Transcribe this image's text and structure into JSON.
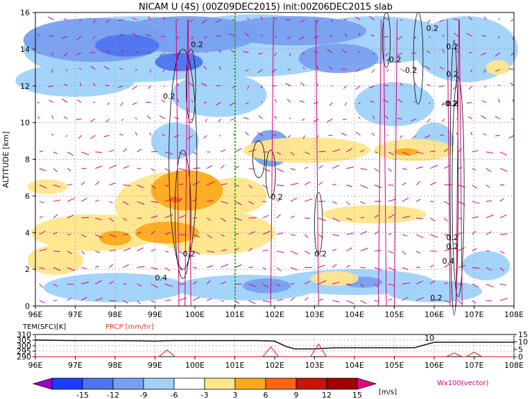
{
  "chart_data": [
    {
      "type": "heatmap",
      "title": "NICAM U (4S) (00Z09DEC2015) init:00Z06DEC2015 slab",
      "ylabel": "ALTITUDE [km]",
      "x_ticks": [
        "96E",
        "97E",
        "98E",
        "99E",
        "100E",
        "101E",
        "102E",
        "103E",
        "104E",
        "105E",
        "106E",
        "107E",
        "108E"
      ],
      "y_ticks": [
        "0",
        "2",
        "4",
        "6",
        "8",
        "10",
        "12",
        "14",
        "16"
      ],
      "xlim": [
        96,
        108
      ],
      "ylim": [
        0,
        16
      ],
      "grid": true,
      "reference_line_x": 101,
      "contour_labels": [
        {
          "text": "0.2",
          "lon": 99.9,
          "alt": 14.1
        },
        {
          "text": "0.2",
          "lon": 99.2,
          "alt": 11.3
        },
        {
          "text": "0.2",
          "lon": 99.7,
          "alt": 2.7
        },
        {
          "text": "0.4",
          "lon": 99.0,
          "alt": 1.4
        },
        {
          "text": "0.2",
          "lon": 101.9,
          "alt": 5.8
        },
        {
          "text": "0.2",
          "lon": 103.0,
          "alt": 2.7
        },
        {
          "text": "0.2",
          "lon": 105.8,
          "alt": 15.0
        },
        {
          "text": "-0.2",
          "lon": 104.8,
          "alt": 13.3
        },
        {
          "text": "-0.2",
          "lon": 105.2,
          "alt": 12.7
        },
        {
          "text": "0.2",
          "lon": 106.3,
          "alt": 14.0
        },
        {
          "text": "0.2",
          "lon": 106.3,
          "alt": 12.5
        },
        {
          "text": "0.2",
          "lon": 106.3,
          "alt": 10.9
        },
        {
          "text": "-0.2",
          "lon": 106.2,
          "alt": 10.9
        },
        {
          "text": "0.2",
          "lon": 106.3,
          "alt": 3.6
        },
        {
          "text": "0.2",
          "lon": 106.3,
          "alt": 3.1
        },
        {
          "text": "0.4",
          "lon": 106.2,
          "alt": 2.3
        },
        {
          "text": "0.2",
          "lon": 105.9,
          "alt": 0.3
        }
      ],
      "vector_label": "Wx100(vector)",
      "colors": {
        "vectors": "#d0007c",
        "contour": "#000000",
        "reference": "#00b400"
      }
    },
    {
      "type": "line",
      "left_axis_label": "TEM(SFC)[K]",
      "right_axis_label": "PRCP [mm/hr]",
      "left_ticks": [
        "310",
        "305",
        "300",
        "295",
        "290"
      ],
      "right_ticks": [
        "15",
        "10",
        "5",
        "0"
      ],
      "x_ticks": [
        "96E",
        "97E",
        "98E",
        "99E",
        "100E",
        "101E",
        "102E",
        "103E",
        "104E",
        "105E",
        "106E",
        "107E",
        "108E"
      ],
      "x": [
        96,
        97,
        98,
        99,
        99.5,
        100,
        100.5,
        101,
        101.5,
        102,
        102.3,
        102.5,
        103,
        103.5,
        104,
        104.5,
        105,
        105.5,
        106,
        106.5,
        107,
        107.5,
        108
      ],
      "series": [
        {
          "name": "TEM(SFC)",
          "values": [
            305,
            304.5,
            304.5,
            304,
            304.5,
            304.5,
            304.5,
            304.5,
            304.5,
            304,
            299,
            297,
            297,
            298,
            298,
            298,
            298,
            298,
            303,
            303,
            303,
            303,
            303
          ],
          "color": "#000000"
        }
      ],
      "prcp_peaks": [
        {
          "lon": 99.3,
          "value": 4.5
        },
        {
          "lon": 101.9,
          "value": 6.5
        },
        {
          "lon": 103.1,
          "value": 8.5
        },
        {
          "lon": 106.5,
          "value": 2.5
        },
        {
          "lon": 107.0,
          "value": 3.0
        }
      ],
      "prcp_color": "#e03c32",
      "annotation": "10"
    },
    {
      "type": "colorbar",
      "labels": [
        "-15",
        "-12",
        "-9",
        "-6",
        "-3",
        "3",
        "6",
        "9",
        "12",
        "15"
      ],
      "unit": "[m/s]",
      "colors": [
        "#a000c8",
        "#1e3cff",
        "#4f74f0",
        "#78a0f0",
        "#a0d2fa",
        "#ffffff",
        "#ffe68c",
        "#ffaa1e",
        "#ff6418",
        "#c8140a",
        "#a00000",
        "#e6007a"
      ]
    }
  ]
}
